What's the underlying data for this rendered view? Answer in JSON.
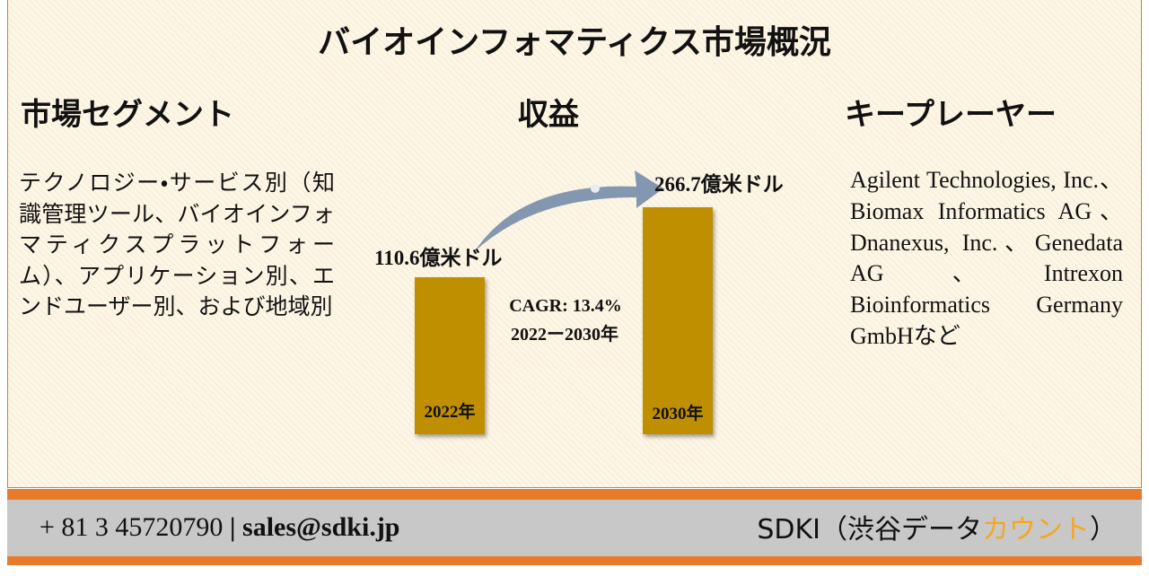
{
  "header": {
    "title": "バイオインフォマティクス市場概況"
  },
  "segments": {
    "heading": "市場セグメント",
    "text": "テクノロジー・サービス別（知識管理ツール、バイオインフォマティクスプラットフォーム）、アプリケーション別、エンドユーザー別、および地域別"
  },
  "revenue": {
    "heading": "収益",
    "start": {
      "amount": "110.6億米ドル",
      "year": "2022年"
    },
    "end": {
      "amount": "266.7億米ドル",
      "year": "2030年"
    },
    "cagr": "CAGR: 13.4%",
    "period": "2022ー2030年"
  },
  "players": {
    "heading": "キープレーヤー",
    "text": "Agilent Technologies, Inc.、Biomax Informatics AG、Dnanexus, Inc.、Genedata AG、Intrexon Bioinformatics Germany GmbHなど"
  },
  "footer": {
    "phone": "+ 81 3 45720790",
    "email": "sales@sdki.jp",
    "brand": "SDKI（渋谷データ",
    "brand_highlight": "カウント",
    "brand_close": "）"
  }
}
